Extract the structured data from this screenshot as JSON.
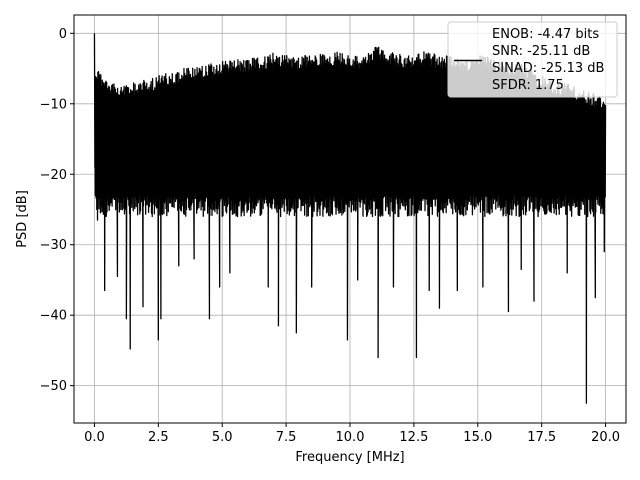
{
  "chart_data": {
    "type": "line",
    "title": "",
    "xlabel": "Frequency [MHz]",
    "ylabel": "PSD [dB]",
    "xlim": [
      -0.8,
      20.8
    ],
    "ylim": [
      -55.3,
      2.6
    ],
    "x_ticks": [
      0.0,
      2.5,
      5.0,
      7.5,
      10.0,
      12.5,
      15.0,
      17.5,
      20.0
    ],
    "x_tick_labels": [
      "0.0",
      "2.5",
      "5.0",
      "7.5",
      "10.0",
      "12.5",
      "15.0",
      "17.5",
      "20.0"
    ],
    "y_ticks": [
      0,
      -10,
      -20,
      -30,
      -40,
      -50
    ],
    "y_tick_labels": [
      "0",
      "−10",
      "−20",
      "−30",
      "−40",
      "−50"
    ],
    "grid": true,
    "legend_placement": "top-right",
    "series": [
      {
        "color": "#000000",
        "peak": [
          0.0,
          0.0
        ],
        "upper_envelope": [
          [
            0.05,
            -4.8
          ],
          [
            0.5,
            -6.5
          ],
          [
            1.0,
            -7.5
          ],
          [
            1.5,
            -7.0
          ],
          [
            2.0,
            -6.5
          ],
          [
            2.5,
            -6.0
          ],
          [
            3.0,
            -5.5
          ],
          [
            3.5,
            -5.0
          ],
          [
            4.0,
            -4.5
          ],
          [
            4.5,
            -4.2
          ],
          [
            5.0,
            -4.0
          ],
          [
            5.5,
            -3.8
          ],
          [
            6.0,
            -3.5
          ],
          [
            6.5,
            -3.5
          ],
          [
            7.0,
            -2.8
          ],
          [
            7.5,
            -3.0
          ],
          [
            8.0,
            -3.2
          ],
          [
            8.5,
            -2.8
          ],
          [
            9.0,
            -3.0
          ],
          [
            9.5,
            -2.5
          ],
          [
            10.0,
            -3.0
          ],
          [
            10.5,
            -3.2
          ],
          [
            11.0,
            -1.7
          ],
          [
            11.5,
            -2.5
          ],
          [
            12.0,
            -3.0
          ],
          [
            12.5,
            -3.0
          ],
          [
            13.0,
            -2.5
          ],
          [
            13.5,
            -3.2
          ],
          [
            14.0,
            -3.0
          ],
          [
            14.5,
            -4.0
          ],
          [
            15.0,
            -3.0
          ],
          [
            15.5,
            -3.5
          ],
          [
            16.0,
            -4.0
          ],
          [
            16.5,
            -4.0
          ],
          [
            17.0,
            -5.0
          ],
          [
            17.5,
            -6.0
          ],
          [
            18.0,
            -7.0
          ],
          [
            18.5,
            -7.0
          ],
          [
            19.0,
            -8.0
          ],
          [
            19.5,
            -8.5
          ],
          [
            20.0,
            -9.0
          ]
        ],
        "lower_band": [
          -26,
          -24
        ],
        "deep_dips": [
          [
            0.02,
            -19.0
          ],
          [
            0.12,
            -26.5
          ],
          [
            0.4,
            -36.5
          ],
          [
            0.9,
            -34.5
          ],
          [
            1.25,
            -40.5
          ],
          [
            1.4,
            -44.8
          ],
          [
            1.9,
            -38.8
          ],
          [
            2.5,
            -43.5
          ],
          [
            2.6,
            -40.5
          ],
          [
            3.3,
            -33.0
          ],
          [
            3.9,
            -32.0
          ],
          [
            4.5,
            -40.5
          ],
          [
            4.9,
            -36.0
          ],
          [
            5.3,
            -34.0
          ],
          [
            6.8,
            -36.0
          ],
          [
            7.2,
            -41.5
          ],
          [
            7.9,
            -42.5
          ],
          [
            8.5,
            -36.0
          ],
          [
            9.9,
            -43.5
          ],
          [
            10.3,
            -35.0
          ],
          [
            11.1,
            -46.0
          ],
          [
            11.7,
            -36.0
          ],
          [
            12.6,
            -46.0
          ],
          [
            13.1,
            -36.5
          ],
          [
            13.5,
            -39.0
          ],
          [
            14.2,
            -36.5
          ],
          [
            15.2,
            -36.0
          ],
          [
            16.2,
            -39.5
          ],
          [
            16.7,
            -33.5
          ],
          [
            17.2,
            -38.0
          ],
          [
            18.5,
            -34.0
          ],
          [
            19.25,
            -52.5
          ],
          [
            19.6,
            -37.5
          ],
          [
            19.95,
            -31.0
          ]
        ]
      }
    ],
    "legend_entries": [
      "ENOB: -4.47 bits",
      "SNR: -25.11 dB",
      "SINAD: -25.13 dB",
      "SFDR: 1.75"
    ]
  },
  "colors": {
    "line": "#000000",
    "grid": "#b0b0b0",
    "axes": "#000000",
    "background": "#ffffff",
    "legend_border": "#cccccc"
  }
}
